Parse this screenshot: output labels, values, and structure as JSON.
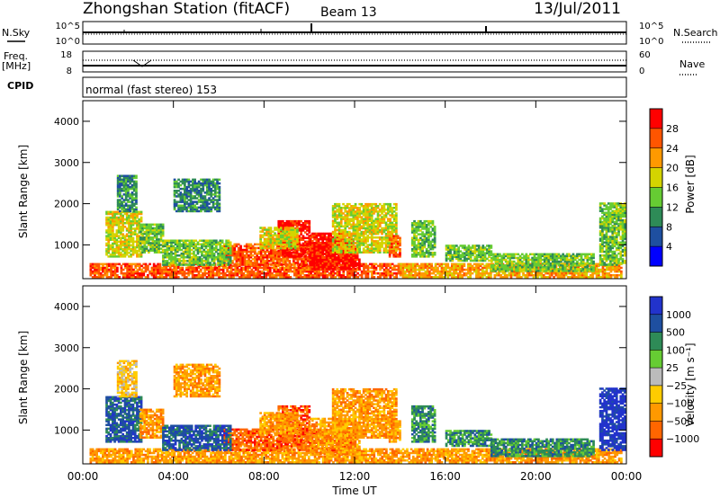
{
  "header": {
    "title": "Zhongshan Station (fitACF)",
    "beam": "Beam 13",
    "date": "13/Jul/2011"
  },
  "params": {
    "nsky_label": "N.Sky",
    "nsearch_label": "N.Search",
    "noise_ticks": [
      "10^5",
      "10^0"
    ],
    "freq_label": "Freq.",
    "freq_unit": "[MHz]",
    "freq_ticks": [
      "18",
      "8"
    ],
    "nave_label": "Nave",
    "nave_ticks": [
      "60",
      "0"
    ],
    "cpid_label": "CPID",
    "cpid_text": "normal (fast stereo) 153"
  },
  "colors": {
    "power": [
      "#0000ff",
      "#1e4fa0",
      "#2e8b57",
      "#66cc33",
      "#d4d400",
      "#ff9900",
      "#ff5500",
      "#ff0000"
    ],
    "velocity": [
      "#ff0000",
      "#ff6600",
      "#ff9900",
      "#ffcc00",
      "#bbbbbb",
      "#66cc33",
      "#2e8b57",
      "#1e4fa0",
      "#2233cc"
    ]
  },
  "chart_data": [
    {
      "type": "heatmap",
      "name": "power",
      "xlabel": "",
      "ylabel": "Slant Range [km]",
      "y_ticks": [
        "4000",
        "3000",
        "2000",
        "1000"
      ],
      "y_tick_values": [
        4000,
        3000,
        2000,
        1000
      ],
      "ylim": [
        180,
        4500
      ],
      "xlim_hours": [
        0,
        24
      ],
      "colorbar_label": "Power [dB]",
      "colorbar_ticks": [
        "28",
        "24",
        "20",
        "16",
        "12",
        "8",
        "4"
      ],
      "colorbar_range": [
        0,
        32
      ],
      "regions": [
        {
          "t0": 0.3,
          "t1": 14.0,
          "r0": 200,
          "r1": 560,
          "level": 6
        },
        {
          "t0": 14.0,
          "t1": 23.8,
          "r0": 200,
          "r1": 520,
          "level": 5
        },
        {
          "t0": 6.2,
          "t1": 12.0,
          "r0": 500,
          "r1": 1000,
          "level": 6
        },
        {
          "t0": 8.6,
          "t1": 10.0,
          "r0": 700,
          "r1": 1600,
          "level": 7
        },
        {
          "t0": 10.0,
          "t1": 12.2,
          "r0": 400,
          "r1": 1300,
          "level": 7
        },
        {
          "t0": 11.0,
          "t1": 13.8,
          "r0": 800,
          "r1": 2000,
          "level": 4
        },
        {
          "t0": 13.5,
          "t1": 14.0,
          "r0": 700,
          "r1": 1200,
          "level": 6
        },
        {
          "t0": 1.0,
          "t1": 2.6,
          "r0": 700,
          "r1": 1800,
          "level": 4
        },
        {
          "t0": 1.5,
          "t1": 2.4,
          "r0": 1800,
          "r1": 2700,
          "level": 2
        },
        {
          "t0": 2.5,
          "t1": 3.5,
          "r0": 800,
          "r1": 1500,
          "level": 3
        },
        {
          "t0": 3.5,
          "t1": 6.5,
          "r0": 500,
          "r1": 1100,
          "level": 3
        },
        {
          "t0": 4.0,
          "t1": 6.0,
          "r0": 1800,
          "r1": 2600,
          "level": 2
        },
        {
          "t0": 7.8,
          "t1": 9.5,
          "r0": 900,
          "r1": 1400,
          "level": 4
        },
        {
          "t0": 14.5,
          "t1": 15.5,
          "r0": 700,
          "r1": 1600,
          "level": 3
        },
        {
          "t0": 16.0,
          "t1": 18.0,
          "r0": 600,
          "r1": 1000,
          "level": 3
        },
        {
          "t0": 18.0,
          "t1": 22.5,
          "r0": 350,
          "r1": 800,
          "level": 3
        },
        {
          "t0": 22.8,
          "t1": 23.9,
          "r0": 500,
          "r1": 2000,
          "level": 3
        }
      ]
    },
    {
      "type": "heatmap",
      "name": "velocity",
      "xlabel": "Time UT",
      "ylabel": "Slant Range [km]",
      "x_ticks": [
        "00:00",
        "04:00",
        "08:00",
        "12:00",
        "16:00",
        "20:00",
        "00:00"
      ],
      "x_tick_values": [
        0,
        4,
        8,
        12,
        16,
        20,
        24
      ],
      "y_ticks": [
        "4000",
        "3000",
        "2000",
        "1000"
      ],
      "y_tick_values": [
        4000,
        3000,
        2000,
        1000
      ],
      "ylim": [
        180,
        4500
      ],
      "xlim_hours": [
        0,
        24
      ],
      "colorbar_label": "Velocity [m s⁻¹]",
      "colorbar_ticks": [
        "1000",
        "500",
        "100",
        "25",
        "−25",
        "−100",
        "−500",
        "−1000"
      ],
      "regions": [
        {
          "t0": 0.3,
          "t1": 14.0,
          "r0": 200,
          "r1": 560,
          "level": 2
        },
        {
          "t0": 14.0,
          "t1": 23.8,
          "r0": 200,
          "r1": 520,
          "level": 2
        },
        {
          "t0": 6.2,
          "t1": 12.0,
          "r0": 500,
          "r1": 1000,
          "level": 1
        },
        {
          "t0": 8.6,
          "t1": 10.0,
          "r0": 700,
          "r1": 1600,
          "level": 1
        },
        {
          "t0": 10.0,
          "t1": 12.2,
          "r0": 400,
          "r1": 1300,
          "level": 2
        },
        {
          "t0": 11.0,
          "t1": 13.8,
          "r0": 800,
          "r1": 2000,
          "level": 2
        },
        {
          "t0": 13.5,
          "t1": 14.0,
          "r0": 700,
          "r1": 1200,
          "level": 2
        },
        {
          "t0": 1.0,
          "t1": 2.6,
          "r0": 700,
          "r1": 1800,
          "level": 7
        },
        {
          "t0": 1.5,
          "t1": 2.4,
          "r0": 1800,
          "r1": 2700,
          "level": 3
        },
        {
          "t0": 2.5,
          "t1": 3.5,
          "r0": 800,
          "r1": 1500,
          "level": 2
        },
        {
          "t0": 3.5,
          "t1": 6.5,
          "r0": 500,
          "r1": 1100,
          "level": 7
        },
        {
          "t0": 4.0,
          "t1": 6.0,
          "r0": 1800,
          "r1": 2600,
          "level": 2
        },
        {
          "t0": 7.8,
          "t1": 9.5,
          "r0": 900,
          "r1": 1400,
          "level": 2
        },
        {
          "t0": 14.5,
          "t1": 15.5,
          "r0": 700,
          "r1": 1600,
          "level": 6
        },
        {
          "t0": 16.0,
          "t1": 18.0,
          "r0": 600,
          "r1": 1000,
          "level": 6
        },
        {
          "t0": 18.0,
          "t1": 22.5,
          "r0": 350,
          "r1": 800,
          "level": 6
        },
        {
          "t0": 22.8,
          "t1": 23.9,
          "r0": 500,
          "r1": 2000,
          "level": 8
        }
      ]
    }
  ]
}
